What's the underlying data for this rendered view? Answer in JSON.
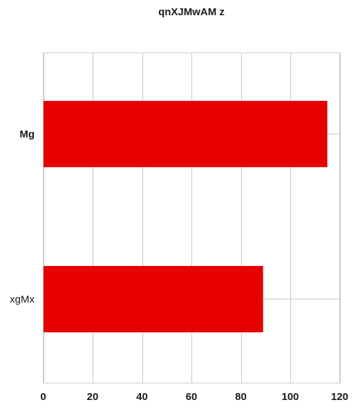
{
  "chart_data": {
    "type": "bar",
    "orientation": "horizontal",
    "title": "qnXJMwAM  z",
    "xlabel": "",
    "ylabel": "",
    "categories": [
      "Mg",
      "xgMx"
    ],
    "category_bold": [
      true,
      false
    ],
    "values": [
      115,
      89
    ],
    "xlim": [
      0,
      120
    ],
    "xticks": [
      0,
      20,
      40,
      60,
      80,
      100,
      120
    ],
    "grid": true,
    "legend": "none",
    "bar_color": "#e60000"
  }
}
